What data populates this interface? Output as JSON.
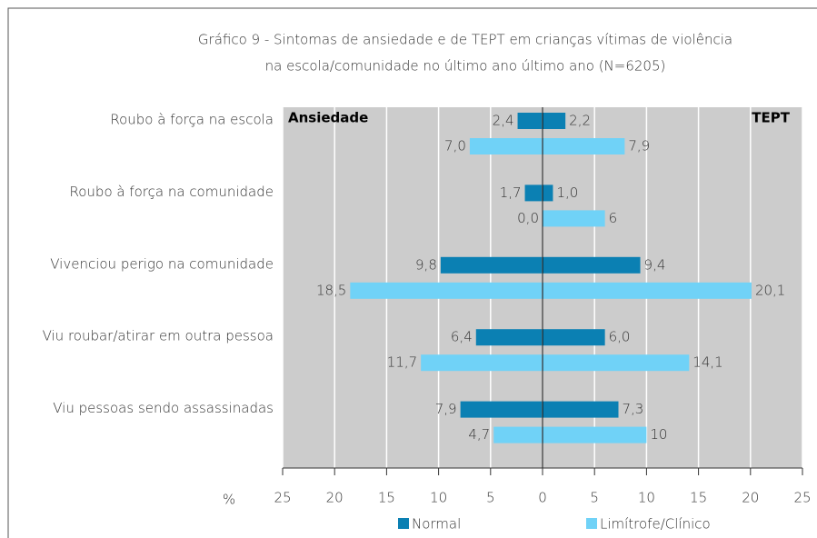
{
  "chart_data": {
    "type": "butterfly",
    "title": [
      "Gráfico 9 - Sintomas de ansiedade e de TEPT em crianças vítimas de violência",
      "na escola/comunidade no último ano último ano (N=6205)"
    ],
    "xlabel": "%",
    "categories": [
      "Roubo à força na escola",
      "Roubo à força na comunidade",
      "Vivenciou perigo na comunidade",
      "Viu roubar/atirar em outra pessoa",
      "Viu pessoas sendo assassinadas"
    ],
    "series": [
      {
        "name": "Normal",
        "color": "#0b80b3"
      },
      {
        "name": "Limítrofe/Clínico",
        "color": "#70d2f7"
      }
    ],
    "grid": true,
    "panels": [
      {
        "name": "Ansiedade",
        "xlim": [
          25,
          0
        ],
        "xticks": [
          25,
          20,
          15,
          10,
          5
        ],
        "values": [
          [
            2.4,
            1.7,
            9.8,
            6.4,
            7.9
          ],
          [
            7.0,
            0.0,
            18.5,
            11.7,
            4.7
          ]
        ],
        "value_labels": [
          [
            "2,4",
            "1,7",
            "9,8",
            "6,4",
            "7,9"
          ],
          [
            "7,0",
            "0,0",
            "18,5",
            "11,7",
            "4,7"
          ]
        ]
      },
      {
        "name": "TEPT",
        "xlim": [
          0,
          25
        ],
        "xticks": [
          0,
          5,
          10,
          15,
          20,
          25
        ],
        "values": [
          [
            2.2,
            1.0,
            9.4,
            6.0,
            7.3
          ],
          [
            7.9,
            6,
            20.1,
            14.1,
            10
          ]
        ],
        "value_labels": [
          [
            "2,2",
            "1,0",
            "9,4",
            "6,0",
            "7,3"
          ],
          [
            "7,9",
            "6",
            "20,1",
            "14,1",
            "10"
          ]
        ]
      }
    ]
  }
}
